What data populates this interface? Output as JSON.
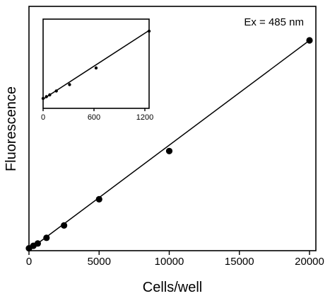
{
  "chart_data": [
    {
      "type": "scatter",
      "title": "",
      "xlabel": "Cells/well",
      "ylabel": "Fluorescence",
      "annotation": "Ex = 485 nm",
      "xlim": [
        0,
        20000
      ],
      "ylim": [
        0,
        1
      ],
      "xticks": [
        0,
        5000,
        10000,
        15000,
        20000
      ],
      "xtick_labels": [
        "0",
        "5000",
        "10000",
        "15000",
        "20000"
      ],
      "yticks": [],
      "grid": false,
      "series": [
        {
          "x": [
            0,
            312,
            625,
            1250,
            2500,
            5000,
            10000,
            20000
          ],
          "y": [
            0.008,
            0.02,
            0.031,
            0.058,
            0.117,
            0.242,
            0.472,
            1.0
          ]
        }
      ],
      "fit_line": {
        "x": [
          0,
          20000
        ],
        "y": [
          0.0,
          1.0
        ]
      }
    },
    {
      "type": "scatter",
      "title": "",
      "xlabel": "",
      "ylabel": "",
      "xlim": [
        0,
        1250
      ],
      "ylim": [
        0,
        1
      ],
      "xticks": [
        0,
        600,
        1200
      ],
      "xtick_labels": [
        "0",
        "600",
        "1200"
      ],
      "yticks": [],
      "grid": false,
      "series": [
        {
          "x": [
            0,
            39,
            78,
            156,
            312,
            625,
            1250
          ],
          "y": [
            0.04,
            0.065,
            0.09,
            0.145,
            0.235,
            0.47,
            0.99
          ]
        }
      ],
      "fit_line": {
        "x": [
          0,
          1250
        ],
        "y": [
          0.03,
          1.0
        ]
      }
    }
  ]
}
